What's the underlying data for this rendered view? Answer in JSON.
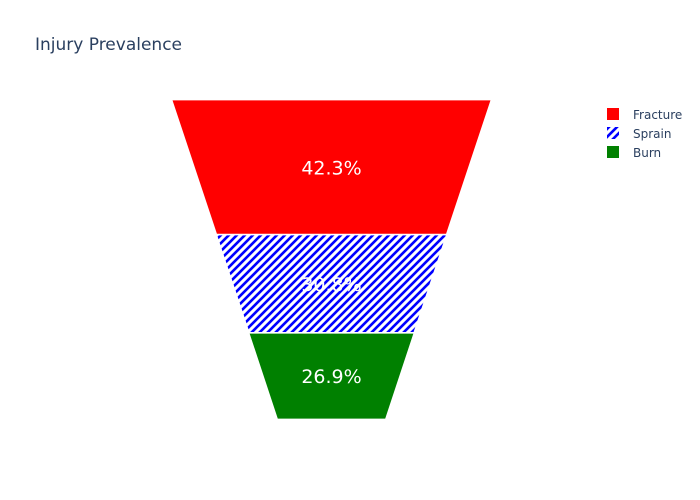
{
  "chart_data": {
    "type": "funnelarea",
    "title": "Injury Prevalence",
    "series": [
      {
        "name": "Fracture",
        "label": "42.3%",
        "value": 42.3,
        "color": "#ff0000",
        "pattern": "solid"
      },
      {
        "name": "Sprain",
        "label": "30.8%",
        "value": 30.8,
        "color": "#0000ff",
        "pattern": "diagonal-stripes"
      },
      {
        "name": "Burn",
        "label": "26.9%",
        "value": 26.9,
        "color": "#008000",
        "pattern": "solid"
      }
    ],
    "legend_position": "top-right"
  }
}
